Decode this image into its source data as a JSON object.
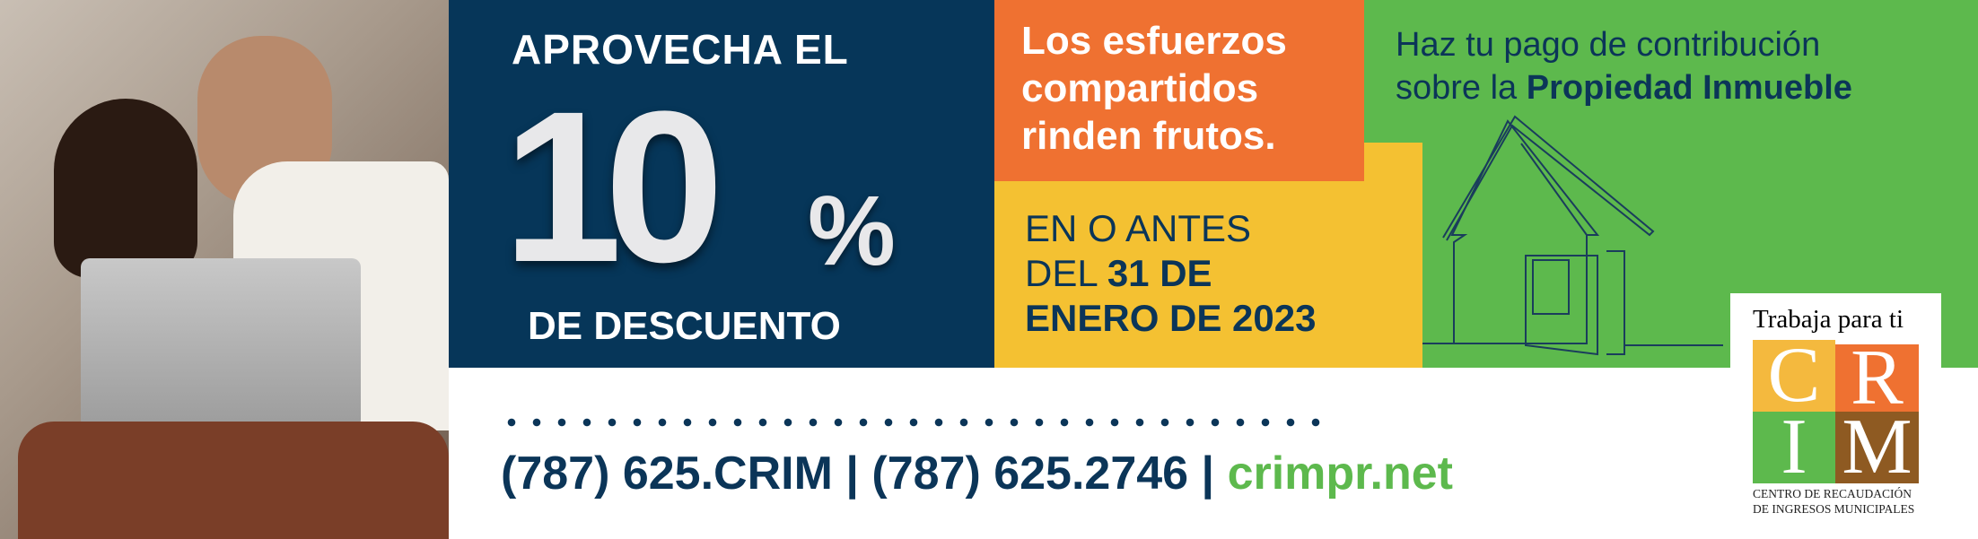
{
  "navy_panel": {
    "headline": "APROVECHA EL",
    "discount": "10",
    "percent": "%",
    "subline": "DE DESCUENTO"
  },
  "orange_panel": {
    "lines": [
      "Los esfuerzos",
      "compartidos",
      "rinden frutos."
    ]
  },
  "yellow_panel": {
    "line1": "EN O ANTES",
    "line2_light": "DEL ",
    "line2_bold": "31 DE",
    "line3": "ENERO DE 2023"
  },
  "green_panel": {
    "line1": "Haz tu pago de contribución",
    "line2_light": "sobre la ",
    "line2_bold": "Propiedad Inmueble"
  },
  "logo": {
    "tagline": "Trabaja para ti",
    "letters": [
      "C",
      "R",
      "I",
      "M"
    ],
    "caption1": "CENTRO DE RECAUDACIÓN",
    "caption2": "DE INGRESOS MUNICIPALES"
  },
  "contact": {
    "phone1": "(787) 625.CRIM",
    "sep": " | ",
    "phone2": "(787) 625.2746",
    "website": "crimpr.net"
  },
  "colors": {
    "navy": "#063659",
    "orange": "#ef7131",
    "yellow": "#f4c132",
    "green": "#5db94d",
    "brown": "#8e5a22"
  }
}
